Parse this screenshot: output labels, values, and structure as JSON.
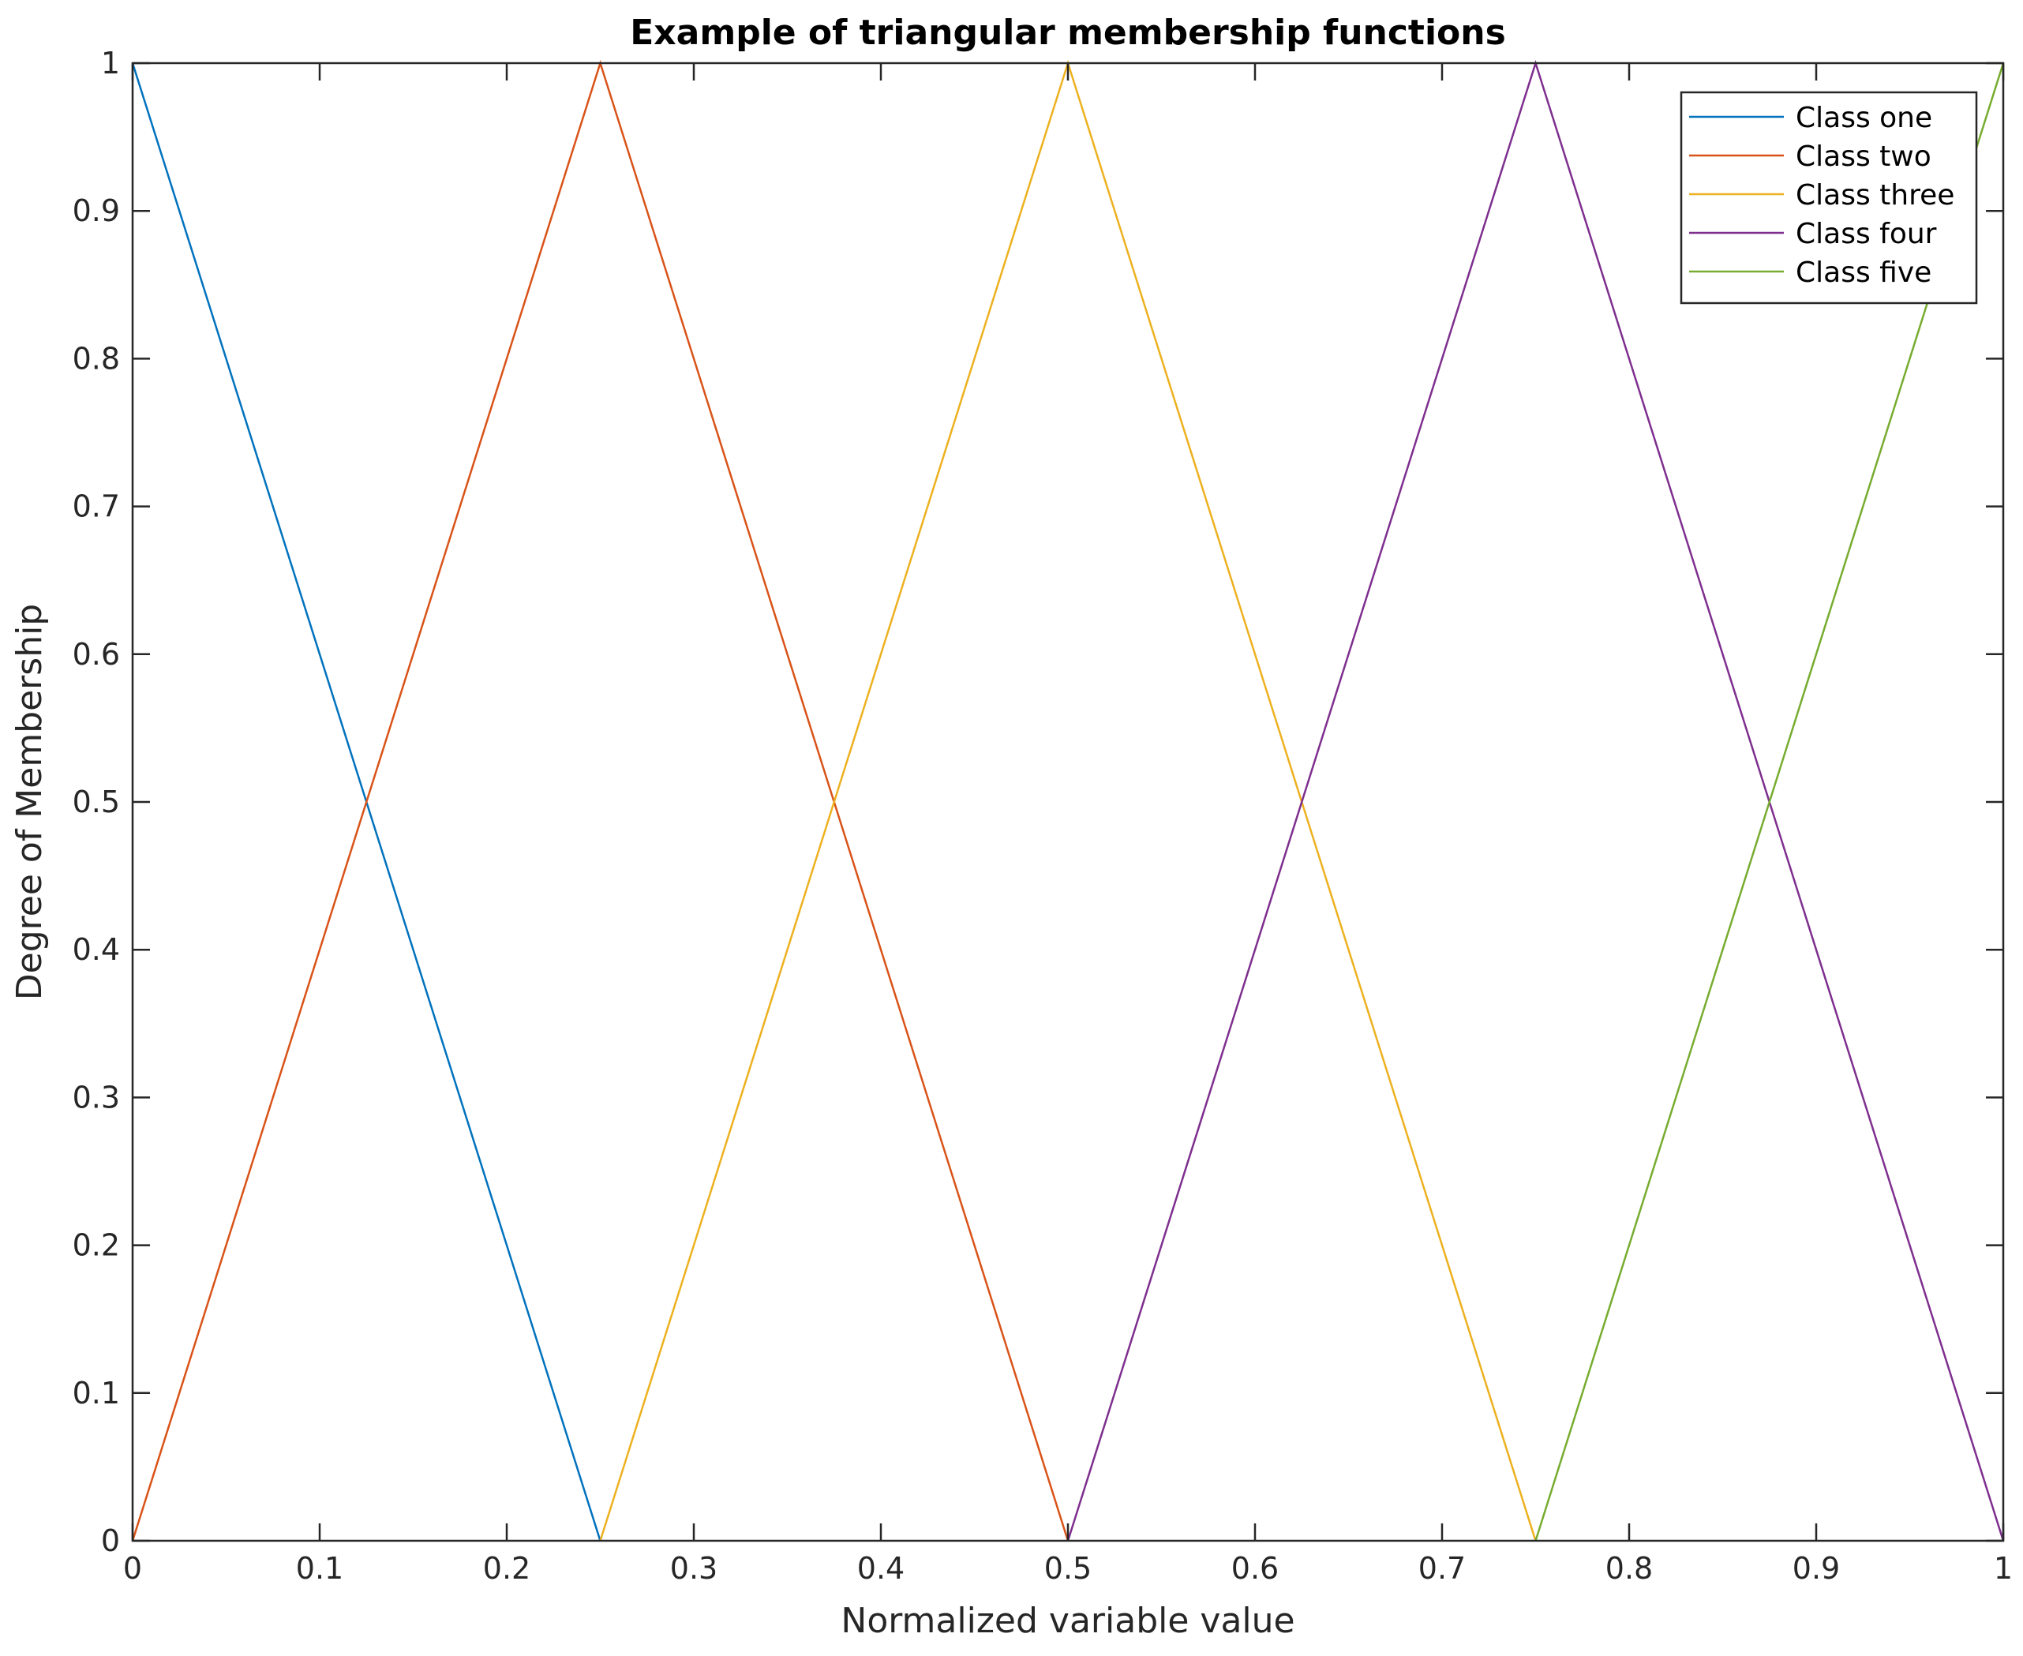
{
  "chart_data": {
    "type": "line",
    "title": "Example of triangular membership functions",
    "xlabel": "Normalized variable value",
    "ylabel": "Degree of Membership",
    "xlim": [
      0,
      1
    ],
    "ylim": [
      0,
      1
    ],
    "xticks": [
      "0",
      "0.1",
      "0.2",
      "0.3",
      "0.4",
      "0.5",
      "0.6",
      "0.7",
      "0.8",
      "0.9",
      "1"
    ],
    "yticks": [
      "0",
      "0.1",
      "0.2",
      "0.3",
      "0.4",
      "0.5",
      "0.6",
      "0.7",
      "0.8",
      "0.9",
      "1"
    ],
    "grid": false,
    "legend_position": "top-right",
    "series": [
      {
        "name": "Class one",
        "color": "#0072BD",
        "x": [
          0,
          0.25
        ],
        "y": [
          1,
          0
        ]
      },
      {
        "name": "Class two",
        "color": "#D95319",
        "x": [
          0,
          0.25,
          0.5
        ],
        "y": [
          0,
          1,
          0
        ]
      },
      {
        "name": "Class three",
        "color": "#EDB120",
        "x": [
          0.25,
          0.5,
          0.75
        ],
        "y": [
          0,
          1,
          0
        ]
      },
      {
        "name": "Class four",
        "color": "#7E2F8E",
        "x": [
          0.5,
          0.75,
          1
        ],
        "y": [
          0,
          1,
          0
        ]
      },
      {
        "name": "Class five",
        "color": "#77AC30",
        "x": [
          0.75,
          1
        ],
        "y": [
          0,
          1
        ]
      }
    ]
  }
}
